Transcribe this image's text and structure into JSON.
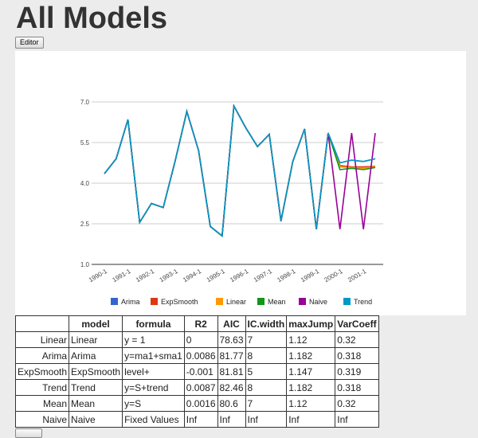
{
  "page": {
    "title": "All Models",
    "editor_label": "Editor"
  },
  "chart_data": {
    "type": "line",
    "x": [
      "1990-1",
      "1990-3",
      "1991-1",
      "1991-3",
      "1992-1",
      "1992-3",
      "1993-1",
      "1993-3",
      "1994-1",
      "1994-3",
      "1995-1",
      "1995-3",
      "1996-1",
      "1996-3",
      "1997-1",
      "1997-3",
      "1998-1",
      "1998-3",
      "1999-1",
      "1999-3",
      "2000-1",
      "2000-3",
      "2001-1",
      "2001-3"
    ],
    "tick_labels": [
      "1990-1",
      "1991-1",
      "1992-1",
      "1993-1",
      "1994-1",
      "1995-1",
      "1996-1",
      "1997-1",
      "1998-1",
      "1999-1",
      "2000-1",
      "2001-1"
    ],
    "yticks": [
      "7.0",
      "5.5",
      "4.0",
      "2.5",
      "1.0"
    ],
    "ylim": [
      1.0,
      7.0
    ],
    "title": "",
    "xlabel": "",
    "ylabel": "",
    "grid": true,
    "legend_position": "bottom",
    "series": [
      {
        "name": "Arima",
        "color": "#3366cc",
        "values": [
          4.35,
          4.9,
          6.35,
          2.55,
          3.25,
          3.1,
          4.8,
          6.65,
          5.2,
          2.4,
          2.05,
          6.85,
          6.05,
          5.35,
          5.8,
          2.6,
          4.8,
          6.0,
          2.3,
          5.85,
          4.75,
          4.85,
          4.8,
          4.9
        ]
      },
      {
        "name": "ExpSmooth",
        "color": "#dc3912",
        "values": [
          4.35,
          4.9,
          6.35,
          2.55,
          3.25,
          3.1,
          4.8,
          6.65,
          5.2,
          2.4,
          2.05,
          6.85,
          6.05,
          5.35,
          5.8,
          2.6,
          4.8,
          6.0,
          2.3,
          5.85,
          4.65,
          4.6,
          4.6,
          4.62
        ]
      },
      {
        "name": "Linear",
        "color": "#ff9900",
        "values": [
          4.35,
          4.9,
          6.35,
          2.55,
          3.25,
          3.1,
          4.8,
          6.65,
          5.2,
          2.4,
          2.05,
          6.85,
          6.05,
          5.35,
          5.8,
          2.6,
          4.8,
          6.0,
          2.3,
          5.85,
          4.6,
          4.58,
          4.55,
          4.6
        ]
      },
      {
        "name": "Mean",
        "color": "#109618",
        "values": [
          4.35,
          4.9,
          6.35,
          2.55,
          3.25,
          3.1,
          4.8,
          6.65,
          5.2,
          2.4,
          2.05,
          6.85,
          6.05,
          5.35,
          5.8,
          2.6,
          4.8,
          6.0,
          2.3,
          5.85,
          4.5,
          4.55,
          4.5,
          4.58
        ]
      },
      {
        "name": "Naive",
        "color": "#990099",
        "values": [
          4.35,
          4.9,
          6.35,
          2.55,
          3.25,
          3.1,
          4.8,
          6.65,
          5.2,
          2.4,
          2.05,
          6.85,
          6.05,
          5.35,
          5.8,
          2.6,
          4.8,
          6.0,
          2.3,
          5.85,
          2.3,
          5.85,
          2.3,
          5.85
        ]
      },
      {
        "name": "Trend",
        "color": "#0099c6",
        "values": [
          4.35,
          4.9,
          6.35,
          2.55,
          3.25,
          3.1,
          4.8,
          6.65,
          5.2,
          2.4,
          2.05,
          6.85,
          6.05,
          5.35,
          5.8,
          2.6,
          4.8,
          6.0,
          2.3,
          5.85,
          4.75,
          4.85,
          4.8,
          4.9
        ]
      }
    ]
  },
  "table": {
    "headers": [
      "",
      "model",
      "formula",
      "R2",
      "AIC",
      "IC.width",
      "maxJump",
      "VarCoeff"
    ],
    "rows": [
      [
        "Linear",
        "Linear",
        "y = 1",
        "0",
        "78.63",
        "7",
        "1.12",
        "0.32"
      ],
      [
        "Arima",
        "Arima",
        "y=ma1+sma1",
        "0.0086",
        "81.77",
        "8",
        "1.182",
        "0.318"
      ],
      [
        "ExpSmooth",
        "ExpSmooth",
        "level+",
        "-0.001",
        "81.81",
        "5",
        "1.147",
        "0.319"
      ],
      [
        "Trend",
        "Trend",
        "y=S+trend",
        "0.0087",
        "82.46",
        "8",
        "1.182",
        "0.318"
      ],
      [
        "Mean",
        "Mean",
        "y=S",
        "0.0016",
        "80.6",
        "7",
        "1.12",
        "0.32"
      ],
      [
        "Naive",
        "Naive",
        "Fixed Values",
        "Inf",
        "Inf",
        "Inf",
        "Inf",
        "Inf"
      ]
    ]
  }
}
